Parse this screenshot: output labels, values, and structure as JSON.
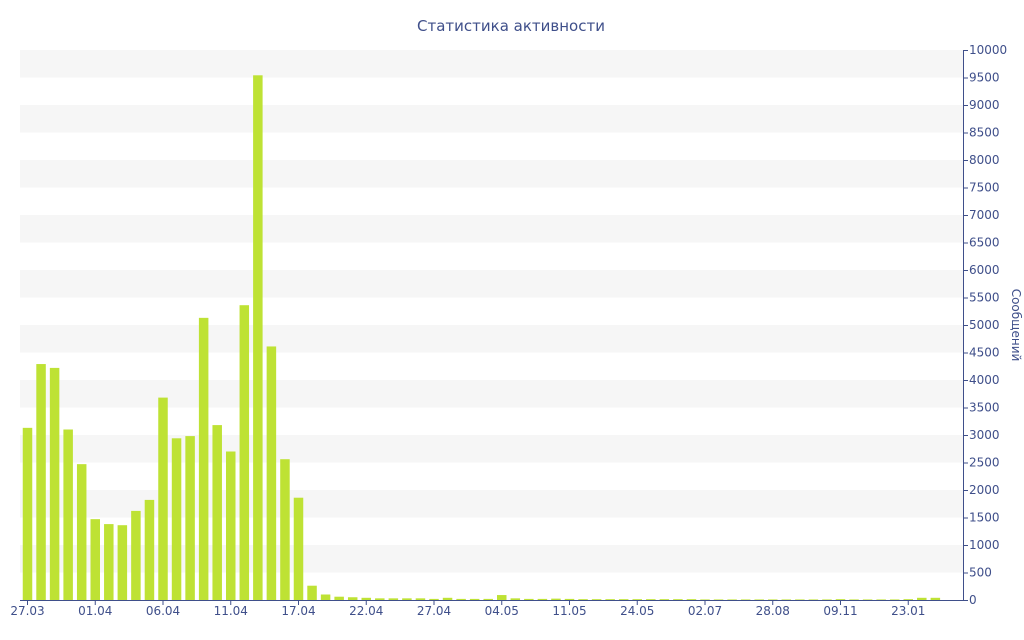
{
  "chart_data": {
    "type": "bar",
    "title": "Статистика активности",
    "xlabel": "",
    "ylabel": "Сообщений",
    "ylim": [
      0,
      10000
    ],
    "yticks": [
      0,
      500,
      1000,
      1500,
      2000,
      2500,
      3000,
      3500,
      4000,
      4500,
      5000,
      5500,
      6000,
      6500,
      7000,
      7500,
      8000,
      8500,
      9000,
      9500,
      10000
    ],
    "y_axis_position": "right",
    "grid": "alternating horizontal bands",
    "bar_color": "#bee234",
    "axis_color": "#3f4f8a",
    "xtick_labels": [
      {
        "index": 0,
        "label": "27.03"
      },
      {
        "index": 5,
        "label": "01.04"
      },
      {
        "index": 10,
        "label": "06.04"
      },
      {
        "index": 15,
        "label": "11.04"
      },
      {
        "index": 20,
        "label": "17.04"
      },
      {
        "index": 25,
        "label": "22.04"
      },
      {
        "index": 30,
        "label": "27.04"
      },
      {
        "index": 35,
        "label": "04.05"
      },
      {
        "index": 40,
        "label": "11.05"
      },
      {
        "index": 45,
        "label": "24.05"
      },
      {
        "index": 50,
        "label": "02.07"
      },
      {
        "index": 55,
        "label": "28.08"
      },
      {
        "index": 60,
        "label": "09.11"
      },
      {
        "index": 65,
        "label": "23.01"
      }
    ],
    "values": [
      3130,
      4290,
      4220,
      3100,
      2470,
      1470,
      1380,
      1360,
      1620,
      1820,
      3680,
      2940,
      2980,
      5130,
      3180,
      2700,
      5360,
      9540,
      4610,
      2560,
      1860,
      260,
      100,
      60,
      50,
      40,
      30,
      30,
      30,
      30,
      20,
      40,
      20,
      20,
      20,
      90,
      30,
      20,
      20,
      25,
      20,
      15,
      15,
      15,
      15,
      15,
      15,
      15,
      15,
      15,
      10,
      10,
      10,
      10,
      10,
      10,
      10,
      10,
      10,
      10,
      15,
      10,
      10,
      10,
      10,
      15,
      40,
      40
    ]
  }
}
